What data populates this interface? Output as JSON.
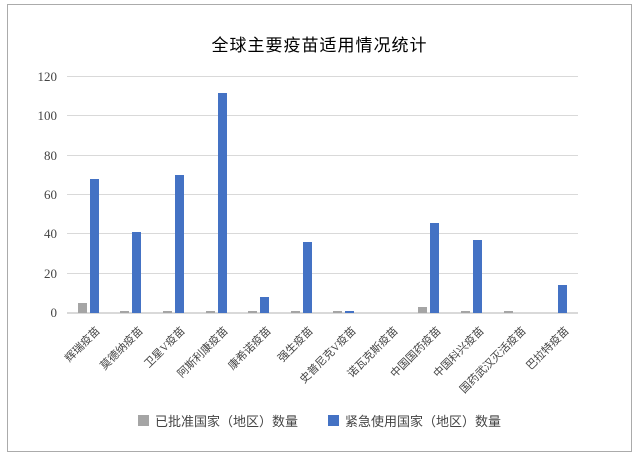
{
  "window": {
    "background_color": "#ffffff",
    "frame_border_color": "#ababab"
  },
  "chart_data": {
    "type": "bar",
    "title": "全球主要疫苗适用情况统计",
    "categories": [
      "辉瑞疫苗",
      "莫德纳疫苗",
      "卫星V疫苗",
      "阿斯利康疫苗",
      "康希诺疫苗",
      "强生疫苗",
      "史普尼克V疫苗",
      "诺瓦克斯疫苗",
      "中国国药疫苗",
      "中国科兴疫苗",
      "国药武汉灭活疫苗",
      "巴拉特疫苗"
    ],
    "series": [
      {
        "name": "已批准国家（地区）数量",
        "color": "#a5a5a5",
        "values": [
          5,
          1,
          1,
          1,
          1,
          1,
          1,
          0,
          3,
          1,
          1,
          0
        ]
      },
      {
        "name": "紧急使用国家（地区）数量",
        "color": "#4472c4",
        "values": [
          68,
          41,
          70,
          112,
          8,
          36,
          1,
          0,
          46,
          37,
          0,
          14
        ]
      }
    ],
    "xlabel": "",
    "ylabel": "",
    "ylim": [
      0,
      120
    ],
    "yticks": [
      0,
      20,
      40,
      60,
      80,
      100,
      120
    ],
    "grid": true,
    "gridline_color": "#d9d9d9",
    "axis_line_color": "#d9d9d9",
    "tick_text_color": "#444444",
    "legend_position": "bottom"
  }
}
